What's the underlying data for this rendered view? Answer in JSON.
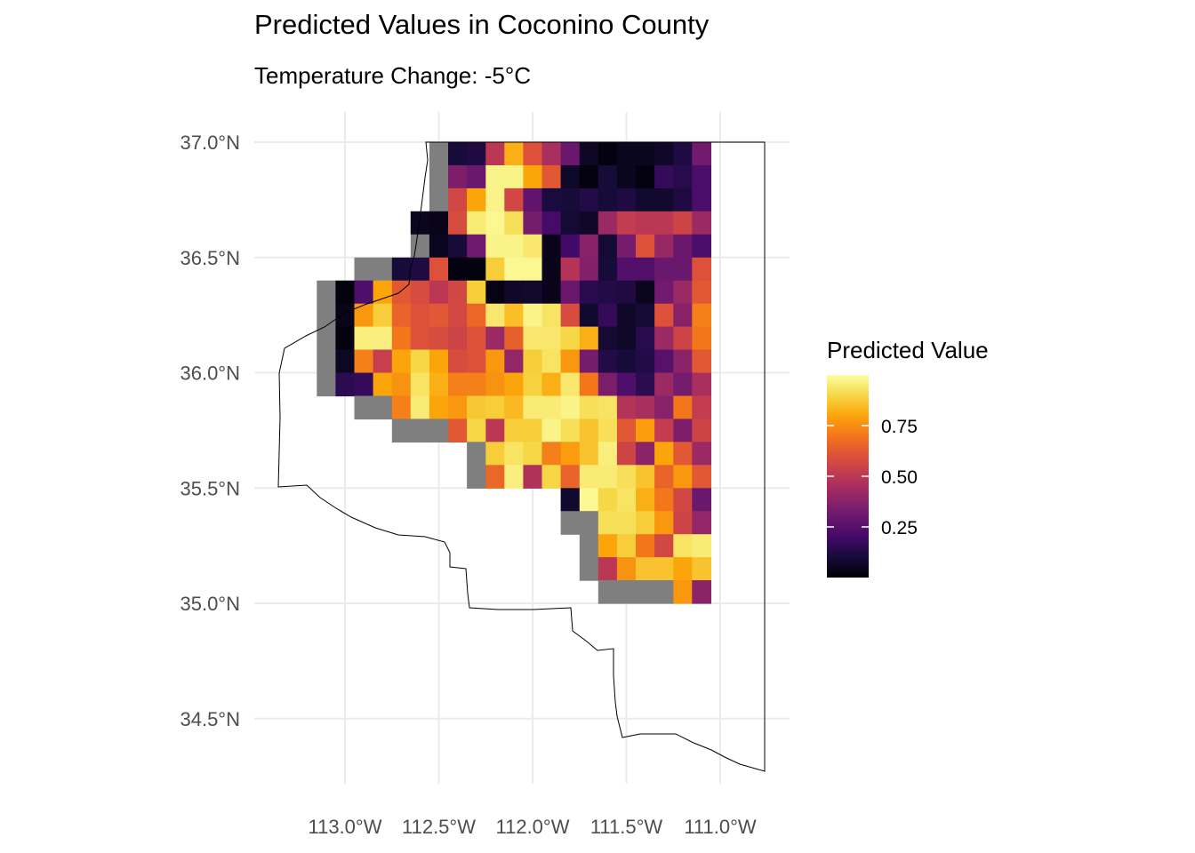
{
  "title": "Predicted Values in Coconino County",
  "subtitle": "Temperature Change: -5°C",
  "chart_data": {
    "type": "heatmap",
    "title": "Predicted Values in Coconino County",
    "subtitle": "Temperature Change: -5°C",
    "xlabel": "",
    "ylabel": "",
    "x_ticks": [
      "113.0°W",
      "112.5°W",
      "112.0°W",
      "111.5°W",
      "111.0°W"
    ],
    "x_tick_values": [
      -113.0,
      -112.5,
      -112.0,
      -111.5,
      -111.0
    ],
    "y_ticks": [
      "37.0°N",
      "36.5°N",
      "36.0°N",
      "35.5°N",
      "35.0°N",
      "34.5°N"
    ],
    "y_tick_values": [
      37.0,
      36.5,
      36.0,
      35.5,
      35.0,
      34.5
    ],
    "xlim": [
      -113.36,
      -110.75
    ],
    "ylim": [
      34.245,
      37.0
    ],
    "grid": true,
    "colormap": "inferno",
    "legend": {
      "title": "Predicted Value",
      "position": "right",
      "breaks": [
        "0.25",
        "0.50",
        "0.75"
      ],
      "break_values": [
        0.25,
        0.5,
        0.75
      ],
      "range": [
        0.0,
        1.0
      ]
    },
    "cell_size_deg": 0.1,
    "grid_origin": {
      "lon_west": -113.15,
      "lat_north": 37.0
    },
    "na_color": "#7f7f7f",
    "boundary_color": "#000000",
    "values": [
      [
        null,
        null,
        null,
        null,
        null,
        "NA",
        0.1,
        0.12,
        0.5,
        0.82,
        0.6,
        0.45,
        0.3,
        0.06,
        0.02,
        0.05,
        0.05,
        0.07,
        0.12,
        0.32
      ],
      [
        null,
        null,
        null,
        null,
        null,
        "NA",
        0.35,
        0.3,
        0.97,
        0.97,
        0.8,
        0.62,
        0.07,
        0.02,
        0.1,
        0.05,
        0.02,
        0.17,
        0.14,
        0.22
      ],
      [
        null,
        null,
        null,
        null,
        null,
        "NA",
        0.56,
        0.8,
        0.97,
        0.56,
        0.28,
        0.11,
        0.1,
        0.13,
        0.1,
        0.12,
        0.08,
        0.08,
        0.12,
        0.22
      ],
      [
        null,
        null,
        null,
        null,
        0.05,
        0.04,
        0.58,
        0.95,
        0.98,
        0.92,
        0.33,
        0.21,
        0.09,
        0.07,
        0.42,
        0.52,
        0.5,
        0.5,
        0.55,
        0.42
      ],
      [
        null,
        null,
        null,
        null,
        "NA",
        0.05,
        0.1,
        0.31,
        0.97,
        0.97,
        0.94,
        0.04,
        0.2,
        0.37,
        0.09,
        0.33,
        0.6,
        0.41,
        0.3,
        0.22
      ],
      [
        null,
        "NA",
        "NA",
        0.1,
        0.12,
        0.6,
        0.02,
        0.02,
        0.88,
        0.98,
        0.98,
        0.04,
        0.48,
        0.36,
        0.1,
        0.24,
        0.24,
        0.3,
        0.3,
        0.6
      ],
      [
        "NA",
        0.02,
        0.23,
        0.8,
        0.62,
        0.58,
        0.5,
        0.56,
        0.88,
        0.03,
        0.07,
        0.08,
        0.04,
        0.3,
        0.14,
        0.13,
        0.12,
        0.05,
        0.32,
        0.42,
        0.62
      ],
      [
        "NA",
        0.04,
        0.77,
        0.88,
        0.65,
        0.6,
        0.62,
        0.57,
        0.66,
        0.94,
        0.85,
        0.97,
        0.93,
        0.58,
        0.08,
        0.17,
        0.07,
        0.09,
        0.6,
        0.37,
        0.72
      ],
      [
        "NA",
        0.02,
        0.96,
        0.96,
        0.7,
        0.6,
        0.58,
        0.55,
        0.6,
        0.42,
        0.64,
        0.94,
        0.94,
        0.9,
        0.82,
        0.09,
        0.07,
        0.14,
        0.42,
        0.55,
        0.7
      ],
      [
        "NA",
        0.06,
        0.72,
        0.53,
        0.8,
        0.9,
        0.8,
        0.58,
        0.6,
        0.77,
        0.4,
        0.88,
        0.93,
        0.77,
        0.33,
        0.13,
        0.1,
        0.13,
        0.25,
        0.38,
        0.62
      ],
      [
        "NA",
        0.15,
        0.17,
        0.8,
        0.76,
        0.93,
        0.82,
        0.72,
        0.72,
        0.76,
        0.8,
        0.89,
        0.82,
        0.94,
        0.7,
        0.34,
        0.23,
        0.15,
        0.42,
        0.33,
        0.45
      ],
      [
        null,
        "NA",
        "NA",
        0.72,
        0.95,
        0.8,
        0.77,
        0.87,
        0.88,
        0.84,
        0.95,
        0.95,
        0.97,
        0.92,
        0.93,
        0.48,
        0.45,
        0.37,
        0.7,
        0.52
      ],
      [
        null,
        null,
        null,
        "NA",
        "NA",
        "NA",
        0.62,
        0.9,
        0.5,
        0.88,
        0.88,
        0.97,
        0.92,
        0.86,
        0.92,
        0.62,
        0.78,
        0.52,
        0.35,
        0.55
      ],
      [
        null,
        null,
        null,
        null,
        null,
        null,
        null,
        "NA",
        0.88,
        0.93,
        0.9,
        0.72,
        0.78,
        0.86,
        0.96,
        0.55,
        0.38,
        0.8,
        0.62,
        0.42
      ],
      [
        null,
        null,
        null,
        null,
        null,
        null,
        null,
        "NA",
        0.66,
        0.96,
        0.47,
        0.9,
        0.65,
        0.95,
        0.95,
        0.92,
        0.86,
        0.65,
        0.77,
        0.62
      ],
      [
        null,
        null,
        null,
        null,
        null,
        null,
        null,
        null,
        null,
        null,
        null,
        null,
        null,
        0.08,
        0.98,
        0.9,
        0.93,
        0.82,
        0.7,
        0.56,
        0.3
      ],
      [
        null,
        null,
        null,
        null,
        null,
        null,
        null,
        null,
        null,
        null,
        null,
        null,
        null,
        "NA",
        "NA",
        0.92,
        0.92,
        0.88,
        0.77,
        0.55,
        0.4
      ],
      [
        null,
        null,
        null,
        null,
        null,
        null,
        null,
        null,
        null,
        null,
        null,
        null,
        null,
        null,
        "NA",
        0.8,
        0.88,
        0.7,
        0.56,
        0.93,
        0.95
      ],
      [
        null,
        null,
        null,
        null,
        null,
        null,
        null,
        null,
        null,
        null,
        null,
        null,
        null,
        null,
        "NA",
        0.5,
        0.76,
        0.86,
        0.86,
        0.8,
        0.86
      ],
      [
        null,
        null,
        null,
        null,
        null,
        null,
        null,
        null,
        null,
        null,
        null,
        null,
        null,
        null,
        null,
        "NA",
        "NA",
        "NA",
        "NA",
        0.77,
        0.38
      ]
    ]
  }
}
